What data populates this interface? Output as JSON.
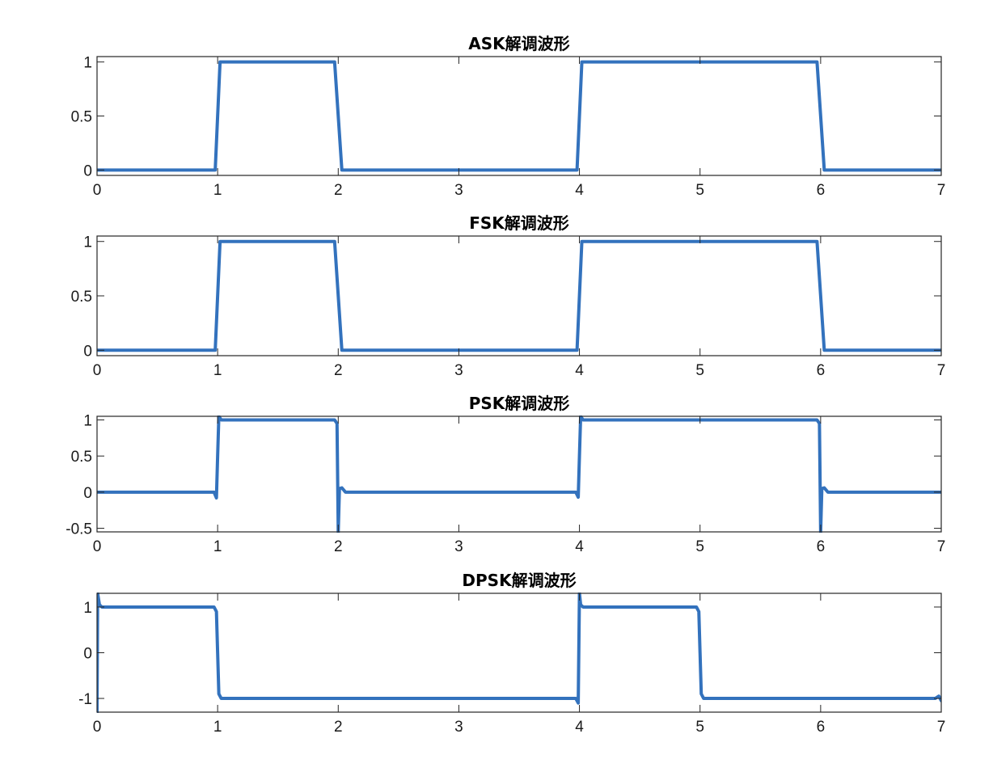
{
  "figure": {
    "background": "#ffffff",
    "line_color": "#3372BD"
  },
  "chart_data": [
    {
      "type": "line",
      "title": "ASK解调波形",
      "xlabel": "",
      "ylabel": "",
      "xlim": [
        0,
        7
      ],
      "ylim": [
        -0.05,
        1.05
      ],
      "xticks": [
        0,
        1,
        2,
        3,
        4,
        5,
        6,
        7
      ],
      "xtick_labels": [
        "0",
        "1",
        "2",
        "3",
        "4",
        "5",
        "6",
        "7"
      ],
      "yticks": [
        0,
        0.5,
        1
      ],
      "ytick_labels": [
        "0",
        "0.5",
        "1"
      ],
      "grid": false,
      "legend": "none",
      "series": [
        {
          "x": [
            0,
            0.98,
            1.0,
            1.02,
            1.97,
            2.0,
            2.03,
            3.98,
            4.0,
            4.02,
            5.97,
            6.0,
            6.03,
            7.0
          ],
          "y": [
            0,
            0,
            0.5,
            1,
            1,
            0.5,
            0,
            0,
            0.5,
            1,
            1,
            0.5,
            0,
            0
          ]
        }
      ]
    },
    {
      "type": "line",
      "title": "FSK解调波形",
      "xlabel": "",
      "ylabel": "",
      "xlim": [
        0,
        7
      ],
      "ylim": [
        -0.05,
        1.05
      ],
      "xticks": [
        0,
        1,
        2,
        3,
        4,
        5,
        6,
        7
      ],
      "xtick_labels": [
        "0",
        "1",
        "2",
        "3",
        "4",
        "5",
        "6",
        "7"
      ],
      "yticks": [
        0,
        0.5,
        1
      ],
      "ytick_labels": [
        "0",
        "0.5",
        "1"
      ],
      "grid": false,
      "legend": "none",
      "series": [
        {
          "x": [
            0,
            0.98,
            1.0,
            1.02,
            1.97,
            2.0,
            2.03,
            3.98,
            4.0,
            4.02,
            5.97,
            6.0,
            6.03,
            7.0
          ],
          "y": [
            0,
            0,
            0.5,
            1,
            1,
            0.5,
            0,
            0,
            0.5,
            1,
            1,
            0.5,
            0,
            0
          ]
        }
      ]
    },
    {
      "type": "line",
      "title": "PSK解调波形",
      "xlabel": "",
      "ylabel": "",
      "xlim": [
        0,
        7
      ],
      "ylim": [
        -0.55,
        1.05
      ],
      "xticks": [
        0,
        1,
        2,
        3,
        4,
        5,
        6,
        7
      ],
      "xtick_labels": [
        "0",
        "1",
        "2",
        "3",
        "4",
        "5",
        "6",
        "7"
      ],
      "yticks": [
        -0.5,
        0,
        0.5,
        1
      ],
      "ytick_labels": [
        "-0.5",
        "0",
        "0.5",
        "1"
      ],
      "grid": false,
      "legend": "none",
      "series": [
        {
          "x": [
            0,
            0.97,
            0.99,
            1.0,
            1.01,
            1.03,
            1.97,
            1.99,
            2.0,
            2.01,
            2.03,
            2.06,
            3.97,
            3.99,
            4.0,
            4.01,
            4.03,
            5.97,
            5.99,
            6.0,
            6.01,
            6.03,
            6.06,
            7.0
          ],
          "y": [
            0,
            0,
            -0.08,
            0.5,
            1.05,
            1,
            1,
            0.95,
            -0.55,
            0.05,
            0.06,
            0,
            0,
            -0.07,
            0.5,
            1.05,
            1,
            1,
            0.95,
            -0.55,
            0.05,
            0.06,
            0,
            0
          ]
        }
      ]
    },
    {
      "type": "line",
      "title": "DPSK解调波形",
      "xlabel": "",
      "ylabel": "",
      "xlim": [
        0,
        7
      ],
      "ylim": [
        -1.3,
        1.3
      ],
      "xticks": [
        0,
        1,
        2,
        3,
        4,
        5,
        6,
        7
      ],
      "xtick_labels": [
        "0",
        "1",
        "2",
        "3",
        "4",
        "5",
        "6",
        "7"
      ],
      "yticks": [
        -1,
        0,
        1
      ],
      "ytick_labels": [
        "-1",
        "0",
        "1"
      ],
      "grid": false,
      "legend": "none",
      "series": [
        {
          "x": [
            0,
            0.005,
            0.02,
            0.04,
            0.97,
            0.99,
            1.0,
            1.01,
            1.03,
            3.97,
            3.99,
            4.0,
            4.01,
            4.03,
            4.97,
            4.99,
            5.0,
            5.01,
            5.03,
            6.95,
            6.98,
            7.0
          ],
          "y": [
            -1.3,
            1.3,
            1.05,
            1.0,
            1.0,
            0.9,
            0.0,
            -0.9,
            -1.0,
            -1.0,
            -1.1,
            1.3,
            1.05,
            1.0,
            1.0,
            0.9,
            0.0,
            -0.9,
            -1.0,
            -1.0,
            -0.95,
            -1.05
          ]
        }
      ]
    }
  ]
}
